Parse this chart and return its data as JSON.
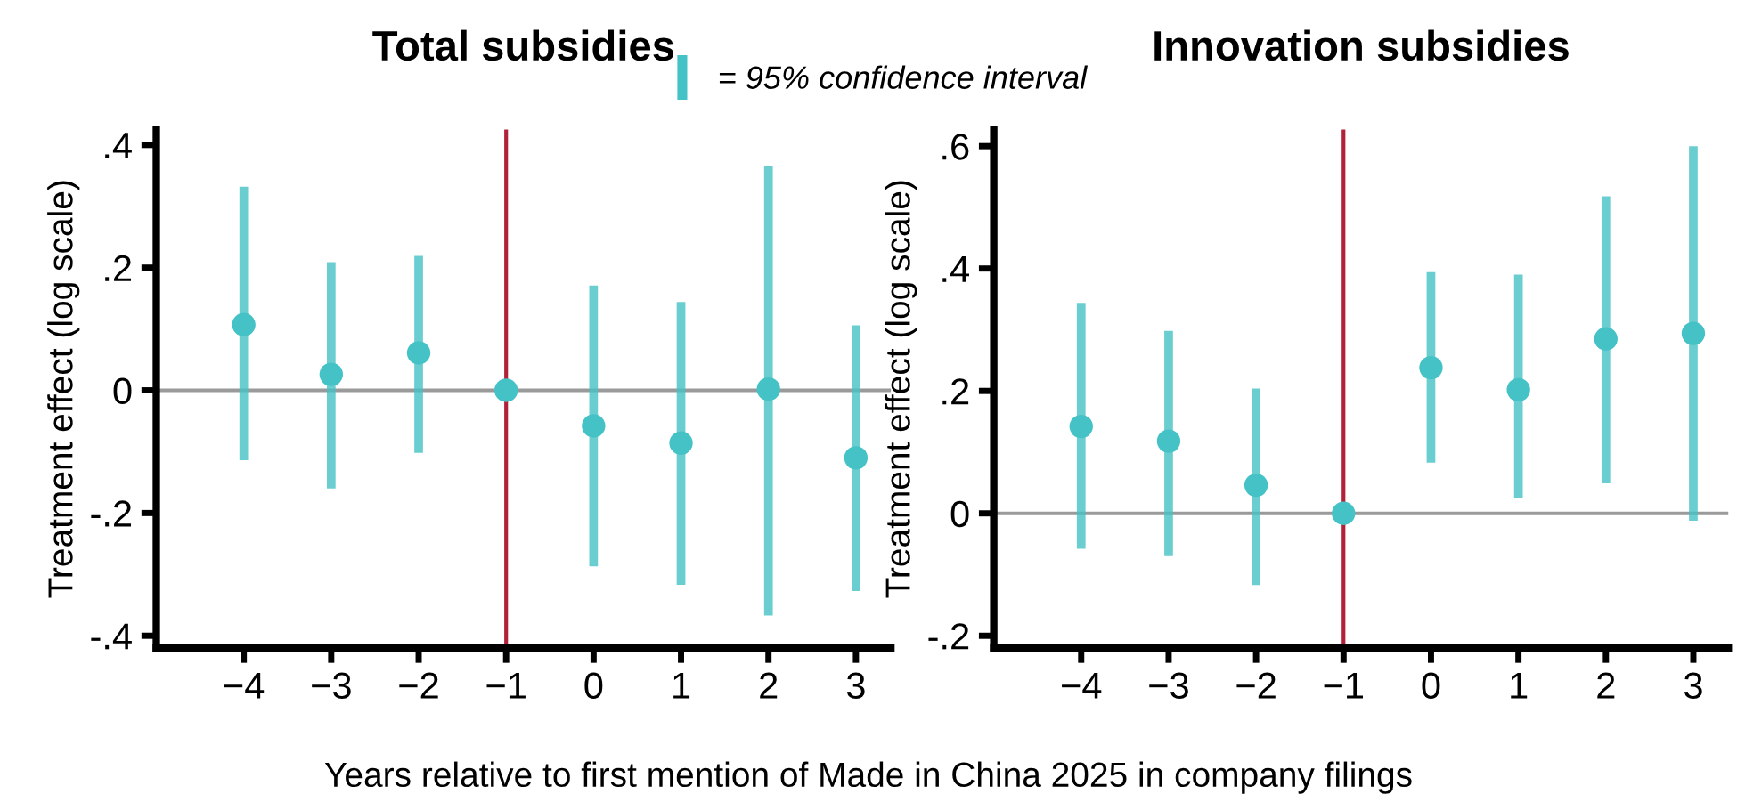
{
  "chart_data": [
    {
      "type": "scatter",
      "title": "Total subsidies",
      "ylabel": "Treatment effect (log scale)",
      "xlabel": "Years relative to first mention of Made in China 2025 in company filings",
      "annotations": [
        "= 95% confidence interval"
      ],
      "x": [
        -4,
        -3,
        -2,
        -1,
        0,
        1,
        2,
        3
      ],
      "series": [
        {
          "color": "#45c2c6",
          "values": [
            0.107,
            0.026,
            0.061,
            0,
            -0.058,
            -0.086,
            0.002,
            -0.11
          ],
          "errors": [
            [
              -0.114,
              0.332
            ],
            [
              -0.16,
              0.209
            ],
            [
              -0.102,
              0.219
            ],
            null,
            [
              -0.287,
              0.171
            ],
            [
              -0.317,
              0.144
            ],
            [
              -0.367,
              0.365
            ],
            [
              -0.327,
              0.106
            ]
          ]
        }
      ],
      "marker": "circle",
      "xlim": [
        -5,
        3.4
      ],
      "ylim": [
        -0.42,
        0.425
      ],
      "xticks": [
        {
          "value": -4,
          "label": "−4"
        },
        {
          "value": -3,
          "label": "−3"
        },
        {
          "value": -2,
          "label": "−2"
        },
        {
          "value": -1,
          "label": "−1"
        },
        0,
        1,
        2,
        3
      ],
      "yticks": [
        {
          "value": -0.4,
          "label": "-.4"
        },
        {
          "value": -0.2,
          "label": "-.2"
        },
        0,
        {
          "value": 0.2,
          "label": ".2"
        },
        {
          "value": 0.4,
          "label": ".4"
        }
      ],
      "ref_lines": [
        {
          "axis": "y",
          "value": 0,
          "color": "#9a9a9a"
        },
        {
          "axis": "x",
          "value": -1,
          "color": "#b0223a"
        }
      ],
      "grid": false
    },
    {
      "type": "scatter",
      "title": "Innovation subsidies",
      "ylabel": "Treatment effect (log scale)",
      "x": [
        -4,
        -3,
        -2,
        -1,
        0,
        1,
        2,
        3
      ],
      "series": [
        {
          "color": "#45c2c6",
          "values": [
            0.142,
            0.118,
            0.046,
            0,
            0.238,
            0.202,
            0.285,
            0.294
          ],
          "errors": [
            [
              -0.058,
              0.344
            ],
            [
              -0.07,
              0.298
            ],
            [
              -0.117,
              0.204
            ],
            null,
            [
              0.083,
              0.394
            ],
            [
              0.025,
              0.39
            ],
            [
              0.049,
              0.518
            ],
            [
              -0.012,
              0.6
            ]
          ]
        }
      ],
      "marker": "circle",
      "xlim": [
        -5,
        3.4
      ],
      "ylim": [
        -0.22,
        0.627
      ],
      "xticks": [
        {
          "value": -4,
          "label": "−4"
        },
        {
          "value": -3,
          "label": "−3"
        },
        {
          "value": -2,
          "label": "−2"
        },
        {
          "value": -1,
          "label": "−1"
        },
        0,
        1,
        2,
        3
      ],
      "yticks": [
        {
          "value": -0.2,
          "label": "-.2"
        },
        0,
        {
          "value": 0.2,
          "label": ".2"
        },
        {
          "value": 0.4,
          "label": ".4"
        },
        {
          "value": 0.6,
          "label": ".6"
        }
      ],
      "ref_lines": [
        {
          "axis": "y",
          "value": 0,
          "color": "#9a9a9a"
        },
        {
          "axis": "x",
          "value": -1,
          "color": "#b0223a"
        }
      ],
      "grid": false
    }
  ]
}
